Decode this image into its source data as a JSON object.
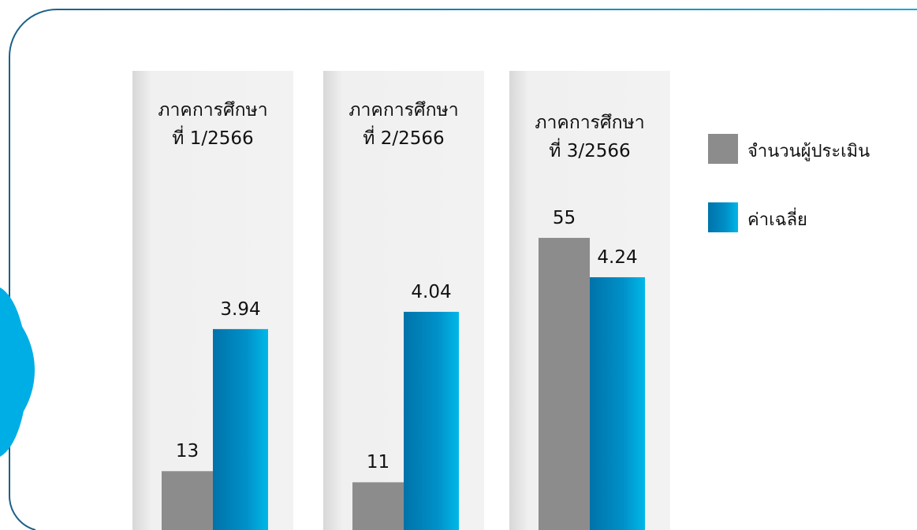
{
  "chart_data": {
    "type": "bar",
    "categories": [
      "ภาคการศึกษา\nที่ 1/2566",
      "ภาคการศึกษา\nที่ 2/2566",
      "ภาคการศึกษา\nที่ 3/2566"
    ],
    "series": [
      {
        "name": "จำนวนผู้ประเมิน",
        "color": "#8c8c8c",
        "values": [
          13,
          11,
          55
        ]
      },
      {
        "name": "ค่าเฉลี่ย",
        "color": "#0a8fc9",
        "values": [
          3.94,
          4.04,
          4.24
        ],
        "axis": "y2"
      }
    ],
    "ylim": [
      0,
      56
    ],
    "y2lim": [
      2.7,
      4.5
    ],
    "legend": "right"
  }
}
